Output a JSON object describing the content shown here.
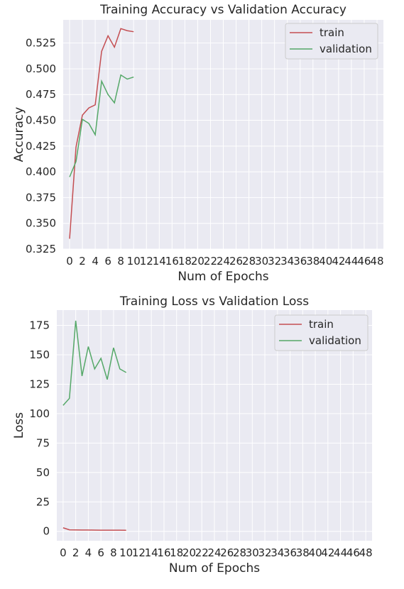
{
  "chart_data": [
    {
      "type": "line",
      "title": "Training Accuracy vs Validation Accuracy",
      "xlabel": "Num of Epochs",
      "ylabel": "Accuracy",
      "xlim": [
        -1,
        49
      ],
      "ylim": [
        0.325,
        0.5475
      ],
      "xticks": [
        0,
        2,
        4,
        6,
        8,
        10,
        12,
        14,
        16,
        18,
        20,
        22,
        24,
        26,
        28,
        30,
        32,
        34,
        36,
        38,
        40,
        42,
        44,
        46,
        48
      ],
      "yticks": [
        0.325,
        0.35,
        0.375,
        0.4,
        0.425,
        0.45,
        0.475,
        0.5,
        0.525
      ],
      "ytick_labels": [
        "0.325",
        "0.350",
        "0.375",
        "0.400",
        "0.425",
        "0.450",
        "0.475",
        "0.500",
        "0.525"
      ],
      "grid": true,
      "legend_position": "top-right",
      "x": [
        0,
        1,
        2,
        3,
        4,
        5,
        6,
        7,
        8,
        9,
        10
      ],
      "series": [
        {
          "name": "train",
          "color": "#c44e52",
          "values": [
            0.335,
            0.424,
            0.455,
            0.462,
            0.465,
            0.517,
            0.532,
            0.521,
            0.539,
            0.537,
            0.536
          ]
        },
        {
          "name": "validation",
          "color": "#55a868",
          "values": [
            0.395,
            0.41,
            0.451,
            0.447,
            0.436,
            0.488,
            0.475,
            0.467,
            0.494,
            0.49,
            0.492
          ]
        }
      ]
    },
    {
      "type": "line",
      "title": "Training Loss vs Validation Loss",
      "xlabel": "Num of Epochs",
      "ylabel": "Loss",
      "xlim": [
        -1,
        49
      ],
      "ylim": [
        -8,
        188
      ],
      "xticks": [
        0,
        2,
        4,
        6,
        8,
        10,
        12,
        14,
        16,
        18,
        20,
        22,
        24,
        26,
        28,
        30,
        32,
        34,
        36,
        38,
        40,
        42,
        44,
        46,
        48
      ],
      "yticks": [
        0,
        25,
        50,
        75,
        100,
        125,
        150,
        175
      ],
      "ytick_labels": [
        "0",
        "25",
        "50",
        "75",
        "100",
        "125",
        "150",
        "175"
      ],
      "grid": true,
      "legend_position": "top-right",
      "x": [
        0,
        1,
        2,
        3,
        4,
        5,
        6,
        7,
        8,
        9,
        10
      ],
      "series": [
        {
          "name": "train",
          "color": "#c44e52",
          "values": [
            3.0,
            1.3,
            1.2,
            1.15,
            1.1,
            1.05,
            1.0,
            1.0,
            0.95,
            0.95,
            0.9
          ]
        },
        {
          "name": "validation",
          "color": "#55a868",
          "values": [
            107,
            113,
            179,
            132,
            157,
            138,
            147,
            129,
            156,
            138,
            135
          ]
        }
      ]
    }
  ]
}
